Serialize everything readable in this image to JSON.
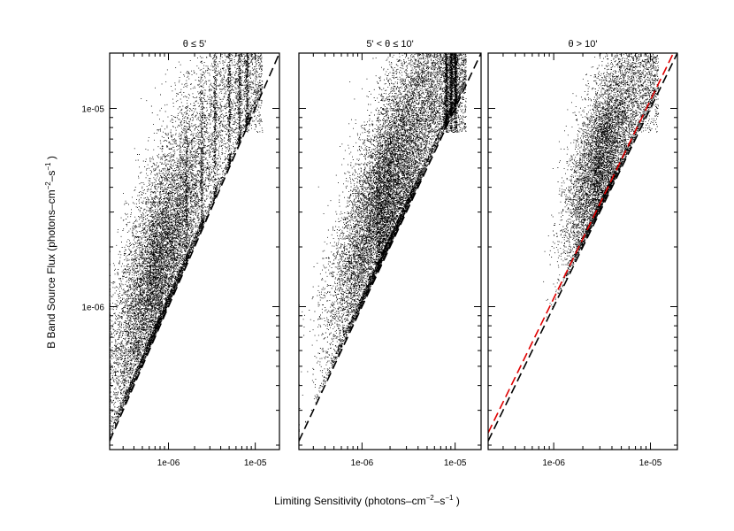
{
  "chart_data": [
    {
      "type": "scatter",
      "title": "θ ≤ 5'",
      "xscale": "log",
      "yscale": "log",
      "xlim": [
        2.1e-07,
        1.9e-05
      ],
      "ylim": [
        1.9e-07,
        1.9e-05
      ],
      "xticks": [
        {
          "value": 1e-06,
          "label": "1e-06"
        },
        {
          "value": 1e-05,
          "label": "1e-05"
        }
      ],
      "yticks": [
        {
          "value": 1e-06,
          "label": "1e-06"
        },
        {
          "value": 1e-05,
          "label": "1e-05"
        }
      ],
      "show_y_tick_labels": true,
      "density": {
        "x_peak": 6e-07,
        "x_spread_dex": 0.32,
        "x_tail": 1.2e-05,
        "y_to_x_ratio_median": 2.0,
        "y_spread_dex": 0.28,
        "vertical_stripes_at_x": [
          1.6e-06,
          2.4e-06,
          3.4e-06,
          5e-06,
          6.5e-06,
          8e-06
        ],
        "point_count": 15000
      },
      "reference_lines": [
        {
          "kind": "y=x",
          "color": "#000000",
          "style": "dashed"
        }
      ]
    },
    {
      "type": "scatter",
      "title": "5' < θ ≤ 10'",
      "xscale": "log",
      "yscale": "log",
      "xlim": [
        2.1e-07,
        1.9e-05
      ],
      "ylim": [
        1.9e-07,
        1.9e-05
      ],
      "xticks": [
        {
          "value": 1e-06,
          "label": "1e-06"
        },
        {
          "value": 1e-05,
          "label": "1e-05"
        }
      ],
      "yticks": [
        {
          "value": 1e-06,
          "label": ""
        },
        {
          "value": 1e-05,
          "label": ""
        }
      ],
      "show_y_tick_labels": false,
      "density": {
        "x_peak": 1.4e-06,
        "x_spread_dex": 0.32,
        "x_tail": 1.3e-05,
        "y_to_x_ratio_median": 1.9,
        "y_spread_dex": 0.27,
        "vertical_stripes_at_x": [
          8e-06,
          9e-06,
          1e-05
        ],
        "point_count": 17000
      },
      "reference_lines": [
        {
          "kind": "y=x",
          "color": "#000000",
          "style": "dashed"
        }
      ]
    },
    {
      "type": "scatter",
      "title": "θ > 10'",
      "xscale": "log",
      "yscale": "log",
      "xlim": [
        2.1e-07,
        1.9e-05
      ],
      "ylim": [
        1.9e-07,
        1.9e-05
      ],
      "xticks": [
        {
          "value": 1e-06,
          "label": "1e-06"
        },
        {
          "value": 1e-05,
          "label": "1e-05"
        }
      ],
      "yticks": [
        {
          "value": 1e-06,
          "label": ""
        },
        {
          "value": 1e-05,
          "label": ""
        }
      ],
      "show_y_tick_labels": false,
      "density": {
        "x_peak": 2.6e-06,
        "x_spread_dex": 0.2,
        "x_tail": 1.2e-05,
        "y_to_x_ratio_median": 1.7,
        "y_spread_dex": 0.22,
        "vertical_stripes_at_x": [],
        "point_count": 8000
      },
      "reference_lines": [
        {
          "kind": "y=x",
          "color": "#000000",
          "style": "dashed"
        },
        {
          "kind": "y=1.1x",
          "color": "#e00000",
          "style": "dashed"
        }
      ]
    }
  ],
  "labels": {
    "xlabel": "Limiting Sensitivity (photons–cm",
    "xlabel_sup1": "−2",
    "xlabel_mid": "–s",
    "xlabel_sup2": "−1",
    "xlabel_end": " )",
    "ylabel": "B Band Source Flux (photons–cm",
    "ylabel_sup1": "−2",
    "ylabel_mid": "–s",
    "ylabel_sup2": "−1",
    "ylabel_end": " )"
  }
}
